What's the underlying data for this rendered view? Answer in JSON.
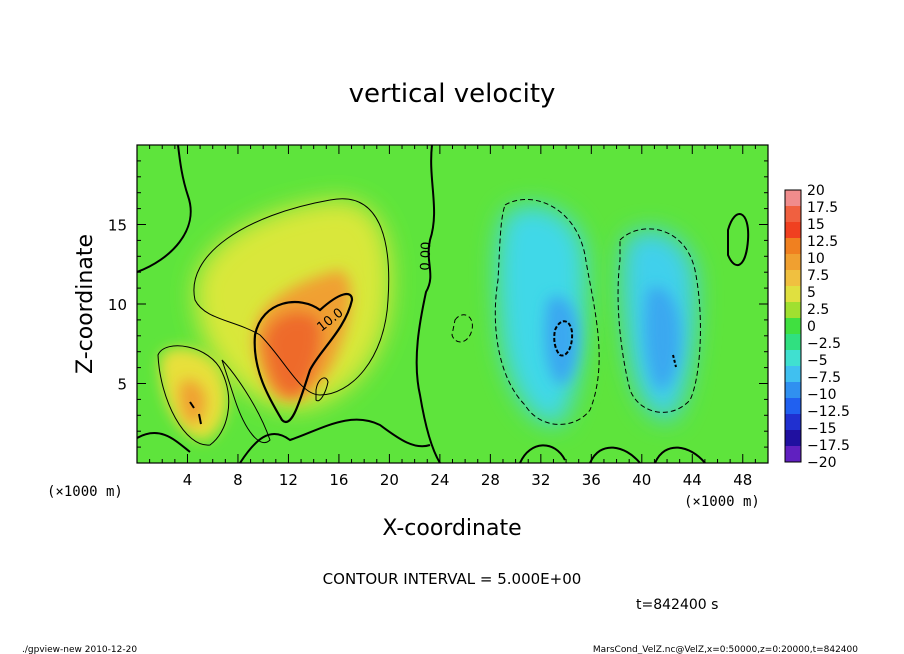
{
  "chart_data": {
    "type": "heatmap",
    "title": "vertical velocity",
    "xlabel": "X-coordinate",
    "ylabel": "Z-coordinate",
    "x_unit": "(×1000 m)",
    "y_unit": "(×1000 m)",
    "xlim": [
      0,
      50
    ],
    "ylim": [
      0,
      20
    ],
    "x_ticks": [
      4,
      8,
      12,
      16,
      20,
      24,
      28,
      32,
      36,
      40,
      44,
      48
    ],
    "y_ticks": [
      5,
      10,
      15
    ],
    "contour_labels": [
      {
        "text": "10.0",
        "x": 15.5,
        "z": 8.8
      },
      {
        "text": "0.00",
        "x": 23.2,
        "z": 13.0
      }
    ],
    "contour_interval_label": "CONTOUR INTERVAL = 5.000E+00",
    "time_label": "t=842400 s",
    "footer_left": "./gpview-new  2010-12-20",
    "footer_right": "MarsCond_VelZ.nc@VelZ,x=0:50000,z=0:20000,t=842400",
    "colorbar": {
      "labels": [
        "20",
        "17.5",
        "15",
        "12.5",
        "10",
        "7.5",
        "5",
        "2.5",
        "0",
        "−2.5",
        "−5",
        "−7.5",
        "−10",
        "−12.5",
        "−15",
        "−17.5",
        "−20"
      ],
      "colors": [
        "#f08c8c",
        "#f06040",
        "#f04020",
        "#f08020",
        "#f0a030",
        "#f0c040",
        "#e0e040",
        "#a0e030",
        "#40e040",
        "#30e080",
        "#40e0d0",
        "#40c0f0",
        "#3090f0",
        "#2060f0",
        "#2030d0",
        "#2010a0",
        "#6020c0"
      ]
    }
  }
}
